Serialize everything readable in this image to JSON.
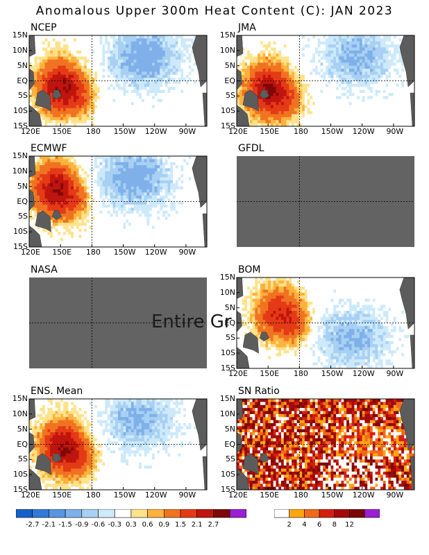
{
  "title": "Anomalous Upper 300m Heat Content (C): JAN 2023",
  "panel_titles": {
    "ncep": "NCEP",
    "jma": "JMA",
    "ecmwf": "ECMWF",
    "gfdl": "GFDL",
    "nasa": "NASA",
    "bom": "BOM",
    "ens": "ENS. Mean",
    "sn": "SN Ratio"
  },
  "overlay_text": "Entire Gr",
  "axes": {
    "x_ticks": [
      "120E",
      "150E",
      "180",
      "150W",
      "120W",
      "90W"
    ],
    "y_ticks": [
      "15N",
      "10N",
      "5N",
      "EQ",
      "5S",
      "10S",
      "15S"
    ]
  },
  "colorbars": {
    "anomaly": {
      "labels": [
        "-2.7",
        "-2.1",
        "-1.5",
        "-0.9",
        "-0.6",
        "-0.3",
        "0.3",
        "0.6",
        "0.9",
        "1.5",
        "2.1",
        "2.7"
      ],
      "colors": [
        "#1560c8",
        "#3379d6",
        "#5a95e0",
        "#7fb0ea",
        "#a8d0f2",
        "#cdeafc",
        "#ffffff",
        "#ffe28a",
        "#ffb23c",
        "#f07322",
        "#e43a16",
        "#c0140e",
        "#7e0808",
        "#9b1fd4"
      ]
    },
    "sn_ratio": {
      "labels": [
        "2",
        "4",
        "6",
        "8",
        "12"
      ],
      "colors": [
        "#ffffff",
        "#ffa60f",
        "#f06a1c",
        "#d41f10",
        "#a30a0a",
        "#7a0606",
        "#9b1fd4"
      ]
    }
  },
  "chart_data": [
    {
      "type": "heatmap",
      "name": "NCEP",
      "x_range": [
        120,
        290
      ],
      "y_range": [
        -15,
        15
      ],
      "warm_pool": {
        "lon": 150,
        "lat": -2,
        "peak_anomaly": 2.7
      },
      "cool_region": {
        "lon": 230,
        "lat": 8,
        "min_anomaly": -1.2
      }
    },
    {
      "type": "heatmap",
      "name": "JMA",
      "x_range": [
        120,
        290
      ],
      "y_range": [
        -15,
        15
      ],
      "warm_pool": {
        "lon": 150,
        "lat": -3,
        "peak_anomaly": 2.7
      },
      "cool_region": {
        "lon": 235,
        "lat": 8,
        "min_anomaly": -1.0
      }
    },
    {
      "type": "heatmap",
      "name": "ECMWF",
      "x_range": [
        120,
        290
      ],
      "y_range": [
        -15,
        15
      ],
      "warm_pool": {
        "lon": 145,
        "lat": 4,
        "peak_anomaly": 2.7
      },
      "cool_region": {
        "lon": 220,
        "lat": 8,
        "min_anomaly": -1.2
      }
    },
    {
      "type": "heatmap",
      "name": "GFDL",
      "missing": true
    },
    {
      "type": "heatmap",
      "name": "NASA",
      "missing": true
    },
    {
      "type": "heatmap",
      "name": "BOM",
      "x_range": [
        120,
        290
      ],
      "y_range": [
        -15,
        15
      ],
      "warm_pool": {
        "lon": 160,
        "lat": 3,
        "peak_anomaly": 2.1
      },
      "cool_region": {
        "lon": 230,
        "lat": -5,
        "min_anomaly": -1.0
      }
    },
    {
      "type": "heatmap",
      "name": "ENS. Mean",
      "x_range": [
        120,
        290
      ],
      "y_range": [
        -15,
        15
      ],
      "warm_pool": {
        "lon": 152,
        "lat": -1,
        "peak_anomaly": 2.7
      },
      "cool_region": {
        "lon": 225,
        "lat": 8,
        "min_anomaly": -1.0
      }
    },
    {
      "type": "heatmap",
      "name": "SN Ratio",
      "x_range": [
        120,
        290
      ],
      "y_range": [
        -15,
        15
      ],
      "max_ratio": 12
    }
  ]
}
